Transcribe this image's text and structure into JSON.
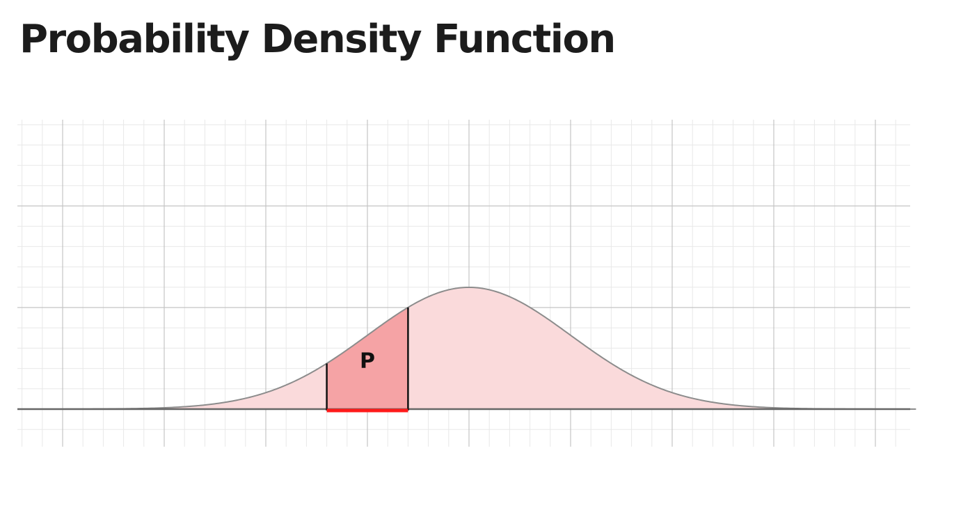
{
  "title": "Probability Density Function",
  "diagram": {
    "region_label": "P",
    "colors": {
      "curve_fill": "#fadadb",
      "region_fill": "#f5a3a5",
      "curve_stroke": "#8c8c8c",
      "axis": "#666666",
      "interval_marker": "#ff1a1a",
      "region_edges": "#111111",
      "grid_major": "#c4c4c4",
      "grid_minor": "#e8e8e8"
    },
    "curve": {
      "type": "normal",
      "mean": 0,
      "std_dev": 1
    },
    "x_range": [
      -4.4,
      4.4
    ],
    "region": [
      -1.4,
      -0.6
    ]
  }
}
